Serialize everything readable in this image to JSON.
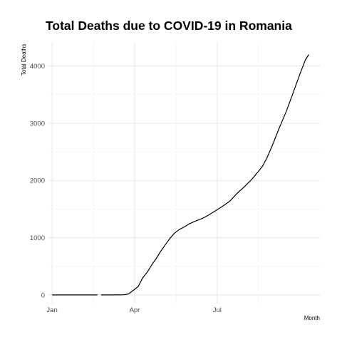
{
  "chart_data": {
    "type": "line",
    "title": "Total Deaths due to COVID-19 in Romania",
    "xlabel": "Month",
    "ylabel": "Total Deaths",
    "x_ticks": [
      "Jan",
      "Apr",
      "Jul"
    ],
    "x_tick_dates": [
      "2020-01-01",
      "2020-04-01",
      "2020-07-01"
    ],
    "x_range": [
      "2019-12-28",
      "2020-10-23"
    ],
    "ylim": [
      -150,
      4430
    ],
    "y_ticks": [
      0,
      1000,
      2000,
      3000,
      4000
    ],
    "grid": true,
    "legend": "none",
    "line_color": "#000000",
    "series": [
      {
        "segments": [
          [
            [
              "2020-01-01",
              0
            ],
            [
              "2020-02-10",
              0
            ],
            [
              "2020-02-20",
              0
            ]
          ],
          [
            [
              "2020-02-24",
              0
            ],
            [
              "2020-03-10",
              0
            ],
            [
              "2020-03-20",
              2
            ],
            [
              "2020-03-25",
              17
            ],
            [
              "2020-03-31",
              85
            ],
            [
              "2020-04-05",
              150
            ],
            [
              "2020-04-10",
              300
            ],
            [
              "2020-04-15",
              400
            ],
            [
              "2020-04-20",
              530
            ],
            [
              "2020-04-25",
              640
            ],
            [
              "2020-04-30",
              770
            ],
            [
              "2020-05-05",
              880
            ],
            [
              "2020-05-10",
              990
            ],
            [
              "2020-05-15",
              1080
            ],
            [
              "2020-05-20",
              1140
            ],
            [
              "2020-05-25",
              1180
            ],
            [
              "2020-05-31",
              1240
            ],
            [
              "2020-06-07",
              1290
            ],
            [
              "2020-06-15",
              1340
            ],
            [
              "2020-06-22",
              1400
            ],
            [
              "2020-06-30",
              1480
            ],
            [
              "2020-07-07",
              1550
            ],
            [
              "2020-07-15",
              1640
            ],
            [
              "2020-07-22",
              1760
            ],
            [
              "2020-07-31",
              1890
            ],
            [
              "2020-08-07",
              2000
            ],
            [
              "2020-08-15",
              2150
            ],
            [
              "2020-08-20",
              2250
            ],
            [
              "2020-08-25",
              2400
            ],
            [
              "2020-08-31",
              2620
            ],
            [
              "2020-09-07",
              2900
            ],
            [
              "2020-09-15",
              3200
            ],
            [
              "2020-09-22",
              3500
            ],
            [
              "2020-09-30",
              3850
            ],
            [
              "2020-10-06",
              4100
            ],
            [
              "2020-10-10",
              4200
            ]
          ]
        ]
      }
    ]
  }
}
